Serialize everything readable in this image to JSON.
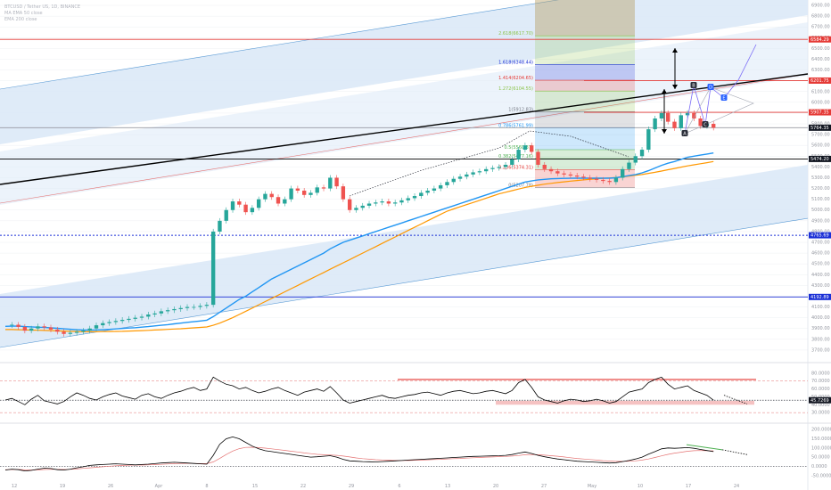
{
  "colors": {
    "background": "#ffffff",
    "candle_up": "#26a69a",
    "candle_down": "#ef5350",
    "ema_short": "#2196f3",
    "ema_long": "#ff9800",
    "channel_fill": "#dce9f7",
    "channel_edge": "#5b9bd5",
    "trendline": "#000000",
    "resistance": "#e53935",
    "support_blue": "#1a2fd6",
    "rsi_line": "#000000",
    "macd_line": "#000000",
    "signal_line": "#e57373",
    "wedge": "#7b6cf6",
    "grid": "#eef0f3"
  },
  "legend": {
    "line1": "BTCUSD / Tether US, 1D, BINANCE",
    "line2": "MA EMA 50 close",
    "line3": "EMA 200 close"
  },
  "chart_data": [
    {
      "type": "line",
      "title": "",
      "y_scale": "price",
      "ylim": [
        3600,
        6950
      ],
      "y_ticks": [
        "6900.00",
        "6800.00",
        "6700.00",
        "6600.00",
        "6500.00",
        "6400.00",
        "6300.00",
        "6200.00",
        "6100.00",
        "6000.00",
        "5900.00",
        "5800.00",
        "5700.00",
        "5600.00",
        "5500.00",
        "5400.00",
        "5300.00",
        "5200.00",
        "5100.00",
        "5000.00",
        "4900.00",
        "4800.00",
        "4700.00",
        "4600.00",
        "4500.00",
        "4400.00",
        "4300.00",
        "4200.00",
        "4100.00",
        "4000.00",
        "3900.00",
        "3800.00",
        "3700.00"
      ],
      "x_ticks": [
        "12",
        "19",
        "26",
        "Apr",
        "8",
        "15",
        "22",
        "29",
        "6",
        "13",
        "20",
        "27",
        "May",
        "10",
        "17",
        "24"
      ],
      "price_tags": [
        {
          "label": "6584.29",
          "value": 6584.29,
          "color": "#e53935"
        },
        {
          "label": "6201.75",
          "value": 6201.75,
          "color": "#e53935"
        },
        {
          "label": "5907.35",
          "value": 5907.35,
          "color": "#e53935"
        },
        {
          "label": "5764.35",
          "value": 5764.35,
          "color": "#131722"
        },
        {
          "label": "5474.20",
          "value": 5474.2,
          "color": "#131722"
        },
        {
          "label": "4765.69",
          "value": 4765.69,
          "color": "#1a2fd6"
        },
        {
          "label": "4192.89",
          "value": 4192.89,
          "color": "#1a2fd6"
        }
      ],
      "horizontal_levels": [
        {
          "value": 6584.29,
          "style": "solid",
          "color": "#e53935"
        },
        {
          "value": 6201.75,
          "style": "solid",
          "color": "#e53935"
        },
        {
          "value": 5907.35,
          "style": "solid",
          "color": "#e53935"
        },
        {
          "value": 5764.35,
          "style": "solid",
          "color": "#9598a1"
        },
        {
          "value": 5474.2,
          "style": "solid",
          "color": "#000000"
        },
        {
          "value": 4765.69,
          "style": "dotted",
          "color": "#1a2fd6"
        },
        {
          "value": 4192.89,
          "style": "solid",
          "color": "#1a2fd6"
        }
      ],
      "fib_levels": [
        {
          "label": "2.618(6617.70)",
          "value": 6617.7,
          "color": "#8bc34a"
        },
        {
          "label": "1.618(6348.44)",
          "value": 6348.44,
          "color": "#1a2fd6"
        },
        {
          "label": "1.414(6204.65)",
          "value": 6204.65,
          "color": "#e53935"
        },
        {
          "label": "1.272(6104.55)",
          "value": 6104.55,
          "color": "#8bc34a"
        },
        {
          "label": "1(5912.83)",
          "value": 5912.83,
          "color": "#787b86"
        },
        {
          "label": "0.786(5761.99)",
          "value": 5761.99,
          "color": "#2196f3"
        },
        {
          "label": "0.5(5560.37)",
          "value": 5560.37,
          "color": "#4caf50"
        },
        {
          "label": "0.382(5477.16)",
          "value": 5477.16,
          "color": "#4caf50"
        },
        {
          "label": "0.236(5374.31)",
          "value": 5374.31,
          "color": "#e53935"
        },
        {
          "label": "0(5207.78)",
          "value": 5207.78,
          "color": "#787b86"
        }
      ],
      "wedge_points": [
        "B",
        "D",
        "A",
        "C",
        "E"
      ],
      "close_series": [
        3930,
        3935,
        3915,
        3880,
        3900,
        3920,
        3910,
        3890,
        3870,
        3850,
        3860,
        3870,
        3880,
        3900,
        3930,
        3950,
        3960,
        3970,
        3980,
        3990,
        4000,
        4010,
        4030,
        4040,
        4060,
        4070,
        4080,
        4090,
        4100,
        4100,
        4110,
        4120,
        4800,
        4900,
        5000,
        5080,
        5050,
        4980,
        5020,
        5100,
        5150,
        5120,
        5060,
        5100,
        5200,
        5180,
        5140,
        5160,
        5210,
        5200,
        5300,
        5220,
        5100,
        5000,
        5020,
        5040,
        5060,
        5070,
        5080,
        5060,
        5070,
        5090,
        5110,
        5130,
        5160,
        5180,
        5200,
        5230,
        5260,
        5290,
        5310,
        5330,
        5350,
        5360,
        5380,
        5390,
        5400,
        5420,
        5470,
        5560,
        5600,
        5540,
        5420,
        5380,
        5360,
        5340,
        5330,
        5320,
        5310,
        5300,
        5290,
        5280,
        5270,
        5260,
        5300,
        5380,
        5440,
        5500,
        5560,
        5750,
        5850,
        5900,
        5820,
        5760,
        5880,
        5900,
        5850,
        5780,
        5800,
        5764
      ],
      "ema_short_series": [
        3920,
        3922,
        3922,
        3918,
        3915,
        3912,
        3910,
        3906,
        3902,
        3897,
        3893,
        3889,
        3886,
        3885,
        3886,
        3889,
        3892,
        3896,
        3900,
        3904,
        3908,
        3913,
        3918,
        3924,
        3930,
        3936,
        3943,
        3950,
        3957,
        3963,
        3970,
        3977,
        4010,
        4050,
        4090,
        4130,
        4170,
        4200,
        4240,
        4280,
        4320,
        4360,
        4390,
        4420,
        4450,
        4480,
        4510,
        4540,
        4570,
        4600,
        4640,
        4670,
        4700,
        4720,
        4740,
        4760,
        4780,
        4800,
        4820,
        4840,
        4860,
        4880,
        4900,
        4920,
        4940,
        4960,
        4980,
        5000,
        5020,
        5040,
        5060,
        5080,
        5100,
        5120,
        5140,
        5160,
        5180,
        5200,
        5220,
        5240,
        5260,
        5270,
        5280,
        5285,
        5290,
        5292,
        5294,
        5295,
        5296,
        5296,
        5296,
        5296,
        5296,
        5296,
        5300,
        5310,
        5320,
        5330,
        5345,
        5365,
        5390,
        5415,
        5435,
        5450,
        5470,
        5490,
        5500,
        5510,
        5520,
        5530
      ],
      "ema_long_series": [
        3890,
        3890,
        3889,
        3887,
        3885,
        3884,
        3882,
        3880,
        3878,
        3876,
        3874,
        3872,
        3870,
        3870,
        3870,
        3871,
        3872,
        3873,
        3874,
        3876,
        3878,
        3880,
        3883,
        3886,
        3889,
        3892,
        3895,
        3898,
        3902,
        3906,
        3910,
        3914,
        3930,
        3950,
        3975,
        4000,
        4030,
        4060,
        4090,
        4120,
        4150,
        4180,
        4210,
        4240,
        4270,
        4300,
        4330,
        4360,
        4390,
        4420,
        4450,
        4480,
        4510,
        4540,
        4570,
        4600,
        4630,
        4660,
        4690,
        4720,
        4750,
        4780,
        4810,
        4840,
        4870,
        4900,
        4930,
        4960,
        4990,
        5010,
        5030,
        5050,
        5070,
        5090,
        5110,
        5130,
        5150,
        5165,
        5180,
        5195,
        5210,
        5220,
        5230,
        5240,
        5248,
        5255,
        5262,
        5268,
        5274,
        5280,
        5285,
        5290,
        5294,
        5298,
        5302,
        5308,
        5315,
        5322,
        5330,
        5340,
        5350,
        5362,
        5374,
        5386,
        5398,
        5410,
        5420,
        5430,
        5440,
        5450
      ]
    },
    {
      "type": "line",
      "title": "",
      "ylim": [
        20,
        90
      ],
      "y_ticks": [
        "80.0000",
        "70.0000",
        "60.0000",
        "50.0000",
        "40.0000",
        "30.0000"
      ],
      "last_value_tag": "45.7269",
      "levels": [
        70,
        30
      ],
      "values": [
        46,
        48,
        44,
        40,
        47,
        52,
        45,
        43,
        41,
        44,
        50,
        55,
        52,
        48,
        46,
        50,
        53,
        55,
        51,
        49,
        47,
        52,
        54,
        50,
        48,
        52,
        55,
        57,
        60,
        62,
        58,
        60,
        75,
        70,
        66,
        64,
        60,
        62,
        58,
        55,
        57,
        60,
        62,
        58,
        55,
        52,
        56,
        58,
        60,
        57,
        63,
        55,
        46,
        42,
        44,
        46,
        48,
        50,
        52,
        49,
        48,
        50,
        52,
        53,
        55,
        56,
        54,
        52,
        55,
        57,
        58,
        56,
        54,
        55,
        57,
        58,
        56,
        54,
        58,
        68,
        72,
        62,
        50,
        46,
        44,
        42,
        45,
        47,
        46,
        44,
        45,
        47,
        45,
        42,
        44,
        50,
        56,
        58,
        60,
        68,
        72,
        75,
        66,
        60,
        62,
        64,
        58,
        55,
        52,
        45.73
      ]
    },
    {
      "type": "line",
      "title": "",
      "ylim": [
        -80,
        220
      ],
      "y_ticks": [
        "200.0000",
        "150.0000",
        "100.0000",
        "50.0000",
        "0.0000",
        "-50.0000"
      ],
      "macd": [
        -20,
        -15,
        -18,
        -25,
        -22,
        -15,
        -10,
        -12,
        -18,
        -20,
        -15,
        -8,
        -2,
        5,
        8,
        10,
        12,
        14,
        12,
        10,
        8,
        10,
        12,
        15,
        18,
        20,
        22,
        20,
        18,
        16,
        14,
        12,
        60,
        120,
        150,
        160,
        150,
        130,
        110,
        95,
        85,
        80,
        75,
        70,
        65,
        60,
        55,
        50,
        52,
        55,
        58,
        50,
        38,
        30,
        28,
        26,
        25,
        24,
        26,
        28,
        30,
        32,
        34,
        36,
        38,
        40,
        42,
        44,
        46,
        48,
        50,
        52,
        54,
        55,
        56,
        57,
        58,
        60,
        64,
        72,
        78,
        70,
        60,
        52,
        46,
        40,
        36,
        32,
        28,
        26,
        24,
        22,
        20,
        18,
        20,
        26,
        32,
        40,
        50,
        66,
        80,
        95,
        100,
        98,
        100,
        102,
        98,
        92,
        86,
        80
      ],
      "signal": [
        -18,
        -17,
        -17,
        -19,
        -20,
        -19,
        -17,
        -16,
        -16,
        -17,
        -16,
        -14,
        -11,
        -8,
        -5,
        -2,
        1,
        3,
        5,
        6,
        7,
        7,
        8,
        10,
        11,
        13,
        15,
        16,
        16,
        16,
        15,
        15,
        24,
        43,
        64,
        83,
        96,
        103,
        104,
        102,
        99,
        95,
        91,
        87,
        82,
        78,
        73,
        69,
        65,
        63,
        62,
        60,
        56,
        51,
        46,
        42,
        39,
        36,
        34,
        33,
        32,
        32,
        32,
        33,
        34,
        35,
        37,
        38,
        40,
        42,
        43,
        45,
        47,
        48,
        50,
        51,
        53,
        54,
        56,
        59,
        63,
        64,
        63,
        61,
        58,
        55,
        51,
        47,
        43,
        40,
        37,
        34,
        31,
        29,
        27,
        27,
        28,
        30,
        34,
        40,
        48,
        57,
        65,
        72,
        77,
        82,
        85,
        86,
        85,
        84
      ]
    }
  ]
}
